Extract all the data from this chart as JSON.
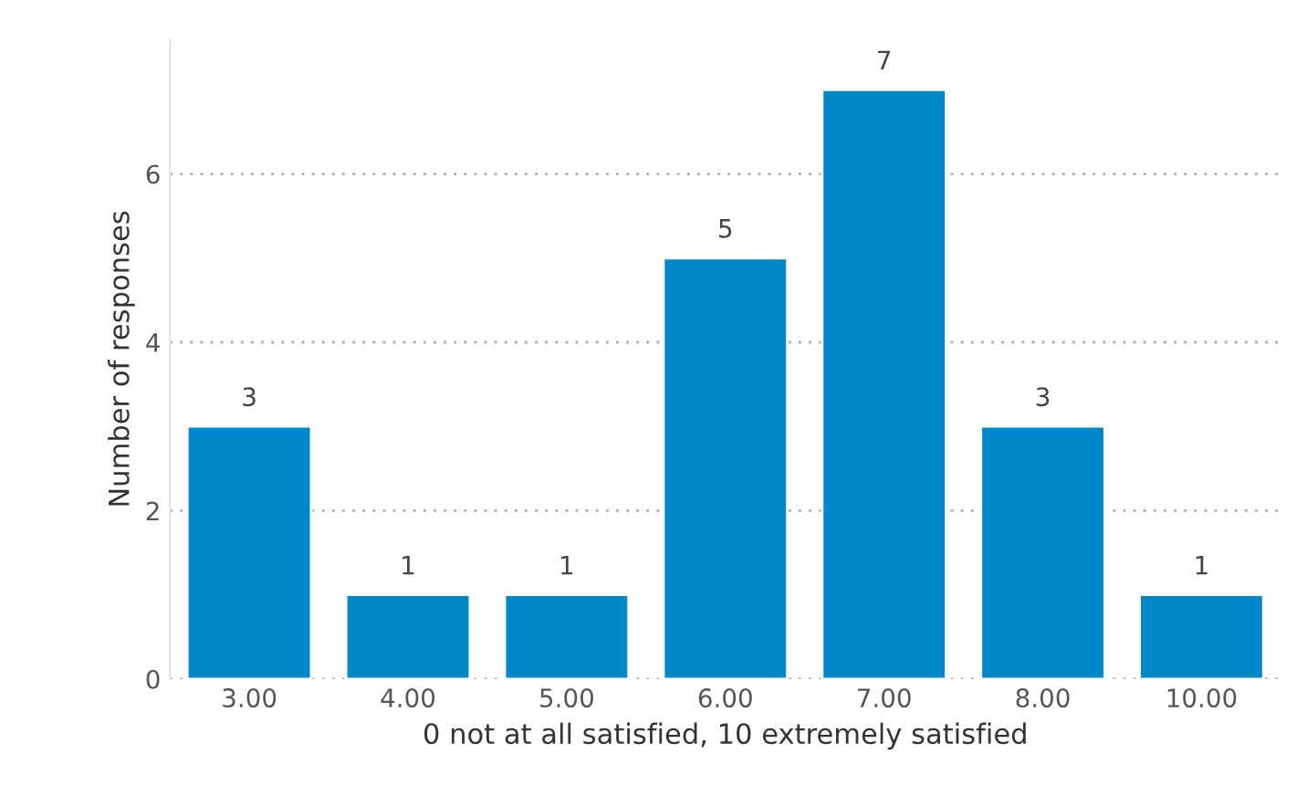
{
  "chart_data": {
    "type": "bar",
    "xlabel": "0 not at all satisfied, 10 extremely satisfied",
    "ylabel": "Number of responses",
    "categories": [
      "3.00",
      "4.00",
      "5.00",
      "6.00",
      "7.00",
      "8.00",
      "10.00"
    ],
    "values": [
      3,
      1,
      1,
      5,
      7,
      3,
      1
    ],
    "color": "#0087c9",
    "ylim": [
      0,
      7.6
    ],
    "yticks": [
      0,
      2,
      4,
      6
    ],
    "grid": "y",
    "data_labels": true
  }
}
